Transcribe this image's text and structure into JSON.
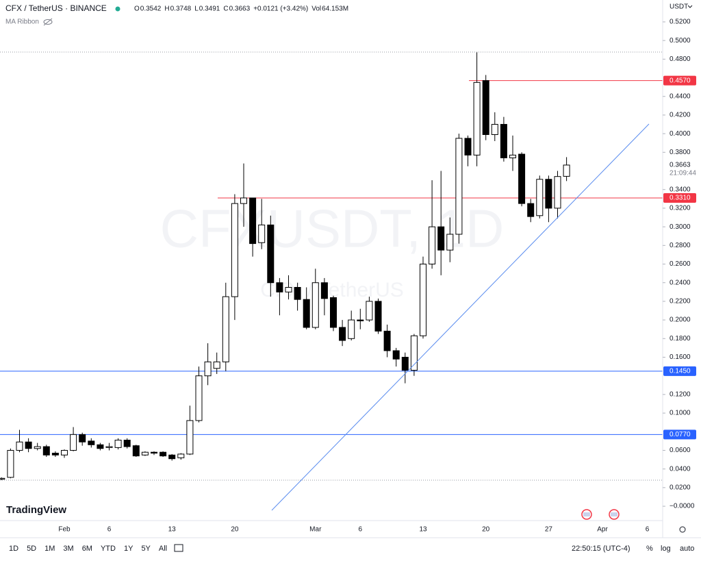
{
  "chart_data": {
    "type": "candlestick",
    "title": "CFX / TetherUS · BINANCE",
    "legend": [
      {
        "label": "O",
        "value": "0.3542"
      },
      {
        "label": "H",
        "value": "0.3748"
      },
      {
        "label": "L",
        "value": "0.3491"
      },
      {
        "label": "C",
        "value": "0.3663"
      },
      {
        "label": "",
        "value": "+0.0121 (+3.42%)"
      },
      {
        "label": "Vol",
        "value": "64.153M"
      }
    ],
    "indicator": "MA Ribbon",
    "watermark": "CFXUSDT, 1D",
    "watermark_subtitle": "CFX / TetherUS",
    "currency": "USDT",
    "categories": [
      null,
      null,
      null,
      null,
      null,
      null,
      null,
      "Feb",
      null,
      null,
      null,
      null,
      "6",
      null,
      null,
      null,
      null,
      null,
      null,
      "13",
      null,
      null,
      null,
      null,
      null,
      null,
      "20",
      null,
      null,
      null,
      null,
      null,
      null,
      null,
      null,
      "Mar",
      null,
      null,
      null,
      null,
      "6",
      null,
      null,
      null,
      null,
      null,
      null,
      "13",
      null,
      null,
      null,
      null,
      null,
      null,
      "20",
      null,
      null,
      null,
      null,
      null,
      null,
      "27",
      null,
      null,
      null,
      null,
      null,
      "Apr",
      null,
      null,
      null,
      null,
      "6"
    ],
    "open": [
      0.029,
      0.031,
      0.06,
      0.069,
      0.062,
      0.064,
      0.057,
      0.055,
      0.06,
      0.077,
      0.07,
      0.066,
      0.063,
      0.063,
      0.071,
      0.065,
      0.055,
      0.058,
      0.058,
      0.055,
      0.052,
      0.056,
      0.092,
      0.14,
      0.148,
      0.155,
      0.225,
      0.325,
      0.331,
      0.283,
      0.302,
      0.24,
      0.23,
      0.235,
      0.222,
      0.192,
      0.24,
      0.224,
      0.192,
      0.18,
      0.2,
      0.2,
      0.22,
      0.188,
      0.167,
      0.16,
      0.146,
      0.183,
      0.26,
      0.3,
      0.275,
      0.292,
      0.395,
      0.377,
      0.457,
      0.399,
      0.41,
      0.374,
      0.378,
      0.325,
      0.312,
      0.351,
      0.32,
      0.3542,
      null,
      null,
      null,
      null,
      null,
      null,
      null,
      null,
      null
    ],
    "high": [
      0.031,
      0.062,
      0.082,
      0.073,
      0.068,
      0.066,
      0.059,
      0.061,
      0.085,
      0.079,
      0.073,
      0.068,
      0.068,
      0.073,
      0.073,
      0.066,
      0.059,
      0.059,
      0.059,
      0.056,
      0.057,
      0.108,
      0.15,
      0.175,
      0.165,
      0.24,
      0.335,
      0.368,
      0.331,
      0.33,
      0.312,
      0.245,
      0.248,
      0.24,
      0.235,
      0.255,
      0.245,
      0.226,
      0.2,
      0.21,
      0.212,
      0.225,
      0.223,
      0.195,
      0.17,
      0.165,
      0.185,
      0.268,
      0.35,
      0.36,
      0.31,
      0.4,
      0.398,
      0.488,
      0.463,
      0.423,
      0.418,
      0.398,
      0.38,
      0.33,
      0.355,
      0.355,
      0.36,
      0.3748,
      null,
      null,
      null,
      null,
      null,
      null,
      null,
      null,
      null
    ],
    "low": [
      0.028,
      0.03,
      0.058,
      0.058,
      0.06,
      0.053,
      0.053,
      0.052,
      0.059,
      0.065,
      0.063,
      0.06,
      0.06,
      0.061,
      0.062,
      0.053,
      0.054,
      0.055,
      0.053,
      0.049,
      0.05,
      0.055,
      0.09,
      0.13,
      0.142,
      0.145,
      0.2,
      0.3,
      0.268,
      0.276,
      0.225,
      0.205,
      0.222,
      0.21,
      0.19,
      0.19,
      0.205,
      0.188,
      0.172,
      0.178,
      0.19,
      0.198,
      0.185,
      0.16,
      0.15,
      0.132,
      0.14,
      0.18,
      0.255,
      0.248,
      0.262,
      0.282,
      0.365,
      0.365,
      0.393,
      0.392,
      0.37,
      0.36,
      0.322,
      0.305,
      0.309,
      0.305,
      0.309,
      0.3491,
      null,
      null,
      null,
      null,
      null,
      null,
      null,
      null,
      null
    ],
    "close": [
      0.03,
      0.06,
      0.069,
      0.062,
      0.064,
      0.055,
      0.055,
      0.06,
      0.077,
      0.069,
      0.066,
      0.062,
      0.064,
      0.071,
      0.064,
      0.054,
      0.058,
      0.057,
      0.054,
      0.051,
      0.056,
      0.092,
      0.14,
      0.155,
      0.155,
      0.225,
      0.325,
      0.331,
      0.282,
      0.302,
      0.24,
      0.23,
      0.235,
      0.222,
      0.192,
      0.24,
      0.223,
      0.192,
      0.178,
      0.2,
      0.199,
      0.22,
      0.188,
      0.167,
      0.158,
      0.146,
      0.183,
      0.26,
      0.3,
      0.275,
      0.292,
      0.395,
      0.377,
      0.455,
      0.399,
      0.41,
      0.374,
      0.377,
      0.325,
      0.311,
      0.351,
      0.32,
      0.354,
      0.3663,
      null,
      null,
      null,
      null,
      null,
      null,
      null,
      null,
      null
    ],
    "up_color": "#ffffff",
    "down_color": "#000000",
    "ylim": [
      -0.0154,
      0.5435
    ],
    "yticks": [
      {
        "value": 0.52,
        "label": "0.5200"
      },
      {
        "value": 0.5,
        "label": "0.5000"
      },
      {
        "value": 0.48,
        "label": "0.4800"
      },
      {
        "value": 0.44,
        "label": "0.4400"
      },
      {
        "value": 0.42,
        "label": "0.4200"
      },
      {
        "value": 0.4,
        "label": "0.4000"
      },
      {
        "value": 0.38,
        "label": "0.3800"
      },
      {
        "value": 0.34,
        "label": "0.3400"
      },
      {
        "value": 0.32,
        "label": "0.3200"
      },
      {
        "value": 0.3,
        "label": "0.3000"
      },
      {
        "value": 0.28,
        "label": "0.2800"
      },
      {
        "value": 0.26,
        "label": "0.2600"
      },
      {
        "value": 0.24,
        "label": "0.2400"
      },
      {
        "value": 0.22,
        "label": "0.2200"
      },
      {
        "value": 0.2,
        "label": "0.2000"
      },
      {
        "value": 0.18,
        "label": "0.1800"
      },
      {
        "value": 0.16,
        "label": "0.1600"
      },
      {
        "value": 0.12,
        "label": "0.1200"
      },
      {
        "value": 0.1,
        "label": "0.1000"
      },
      {
        "value": 0.06,
        "label": "0.0600"
      },
      {
        "value": 0.04,
        "label": "0.0400"
      },
      {
        "value": 0.02,
        "label": "0.0200"
      },
      {
        "value": 0,
        "label": "−0.0000"
      }
    ],
    "price_lines": [
      {
        "value": 0.457,
        "label": "0.4570",
        "color": "#f23645"
      },
      {
        "value": 0.331,
        "label": "0.3310",
        "color": "#f23645"
      },
      {
        "value": 0.145,
        "label": "0.1450",
        "color": "#2962ff"
      },
      {
        "value": 0.077,
        "label": "0.0770",
        "color": "#2962ff"
      }
    ],
    "current_price": {
      "value": 0.3663,
      "label": "0.3663",
      "countdown": "21:09:44"
    },
    "toolbar": {
      "ranges": [
        "1D",
        "5D",
        "1M",
        "3M",
        "6M",
        "YTD",
        "1Y",
        "5Y",
        "All"
      ],
      "clock": "22:50:15 (UTC-4)",
      "percent": "%",
      "log": "log",
      "auto": "auto"
    },
    "brand": "TradingView"
  }
}
